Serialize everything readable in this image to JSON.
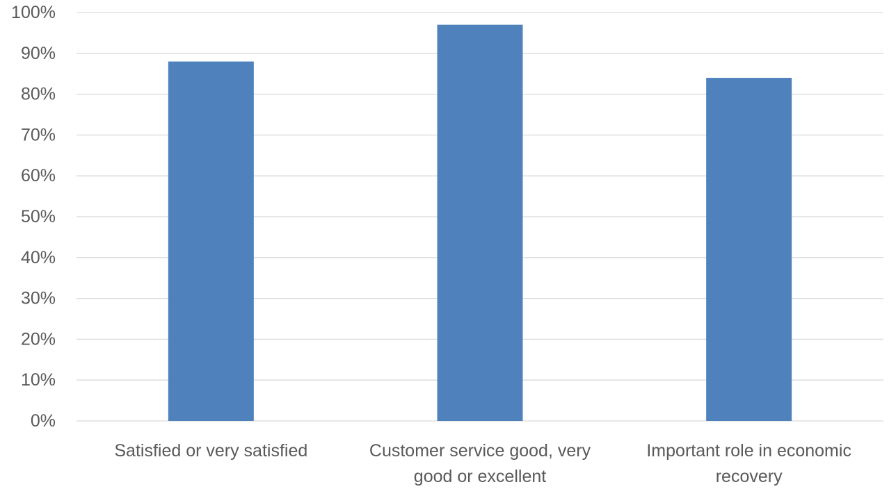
{
  "chart_data": {
    "type": "bar",
    "title": "",
    "xlabel": "",
    "ylabel": "",
    "categories": [
      [
        "Satisfied or very satisfied"
      ],
      [
        "Customer service good, very",
        "good or excellent"
      ],
      [
        "Important role in economic",
        "recovery"
      ]
    ],
    "values": [
      88,
      97,
      84
    ],
    "ylim": [
      0,
      100
    ],
    "ytick_step": 10,
    "ytick_format": "percent",
    "grid": true,
    "legend": "none",
    "bar_color": "#4f81bd",
    "grid_color": "#d9d9d9",
    "text_color": "#595959"
  }
}
